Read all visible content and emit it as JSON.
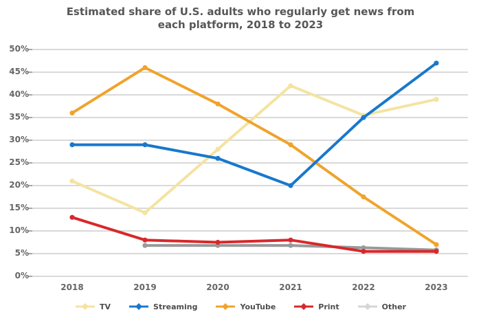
{
  "title": {
    "line1": "Estimated share of U.S. adults who regularly get news from",
    "line2": "each platform, 2018 to 2023"
  },
  "chart_data": {
    "type": "line",
    "title": "Estimated share of U.S. adults who regularly get news from each platform, 2018 to 2023",
    "categories": [
      "2018",
      "2019",
      "2020",
      "2021",
      "2022",
      "2023"
    ],
    "series": [
      {
        "name": "TV",
        "color": "#f4e3a1",
        "values": [
          21,
          14,
          28,
          42,
          35.5,
          39
        ]
      },
      {
        "name": "Streaming",
        "color": "#1878cc",
        "values": [
          29,
          29,
          26,
          20,
          35,
          47
        ]
      },
      {
        "name": "YouTube",
        "color": "#f0a32b",
        "values": [
          36,
          46,
          38,
          29,
          17.5,
          7
        ]
      },
      {
        "name": "Print",
        "color": "#d8282b",
        "values": [
          13,
          8,
          7.5,
          8,
          5.5,
          5.5
        ]
      },
      {
        "name": "Other",
        "color": "#999999",
        "legend_color": "#d6d6d6",
        "values": [
          null,
          6.8,
          6.8,
          6.8,
          6.3,
          5.8
        ]
      }
    ],
    "xlabel": "",
    "ylabel": "",
    "ylim": [
      0,
      50
    ],
    "yticks": [
      "50%",
      "45%",
      "40%",
      "35%",
      "30%",
      "25%",
      "20%",
      "15%",
      "10%",
      "5%",
      "0%"
    ],
    "grid": true,
    "gridline_color": "#d9d9d9",
    "tick_color": "#a6a6a6",
    "legend_position": "bottom"
  }
}
